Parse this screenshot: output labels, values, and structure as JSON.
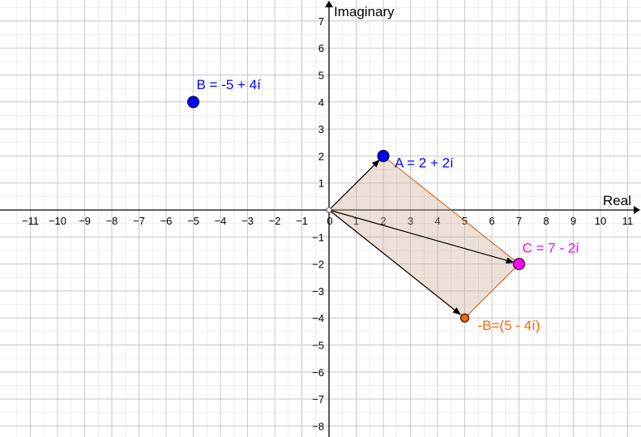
{
  "axes": {
    "x_label": "Real",
    "y_label": "Imaginary",
    "x_ticks": [
      "−11",
      "−10",
      "−9",
      "−8",
      "−7",
      "−6",
      "−5",
      "−4",
      "−3",
      "−2",
      "−1",
      "0",
      "1",
      "2",
      "3",
      "4",
      "5",
      "6",
      "7",
      "8",
      "9",
      "10",
      "11"
    ],
    "y_ticks": [
      "7",
      "6",
      "5",
      "4",
      "3",
      "2",
      "1",
      "−1",
      "−2",
      "−3",
      "−4",
      "−5",
      "−6",
      "−7",
      "−8"
    ],
    "x_range": [
      -11.9,
      11.5
    ],
    "y_range": [
      -8.3,
      7.7
    ]
  },
  "points": [
    {
      "id": "A",
      "x": 2,
      "y": 2,
      "label": "A = 2 + 2í",
      "color": "#0000ff"
    },
    {
      "id": "B",
      "x": -5,
      "y": 4,
      "label": "B = -5 + 4í",
      "color": "#0000ff"
    },
    {
      "id": "C",
      "x": 7,
      "y": -2,
      "label": "C = 7 - 2í",
      "color": "#ff00ff"
    },
    {
      "id": "negB",
      "x": 5,
      "y": -4,
      "label": "-B=(5 - 4í)",
      "color": "#ff6600"
    }
  ],
  "vectors": [
    {
      "from": [
        0,
        0
      ],
      "to": [
        2,
        2
      ]
    },
    {
      "from": [
        0,
        0
      ],
      "to": [
        7,
        -2
      ]
    },
    {
      "from": [
        0,
        0
      ],
      "to": [
        5,
        -4
      ]
    }
  ],
  "parallelogram": {
    "vertices": [
      [
        0,
        0
      ],
      [
        2,
        2
      ],
      [
        7,
        -2
      ],
      [
        5,
        -4
      ]
    ],
    "fill": "#c9a690",
    "fill_opacity": 0.35,
    "stroke": "#cc5500"
  },
  "colors": {
    "grid": "#c8c8c8",
    "axis": "#000000"
  }
}
